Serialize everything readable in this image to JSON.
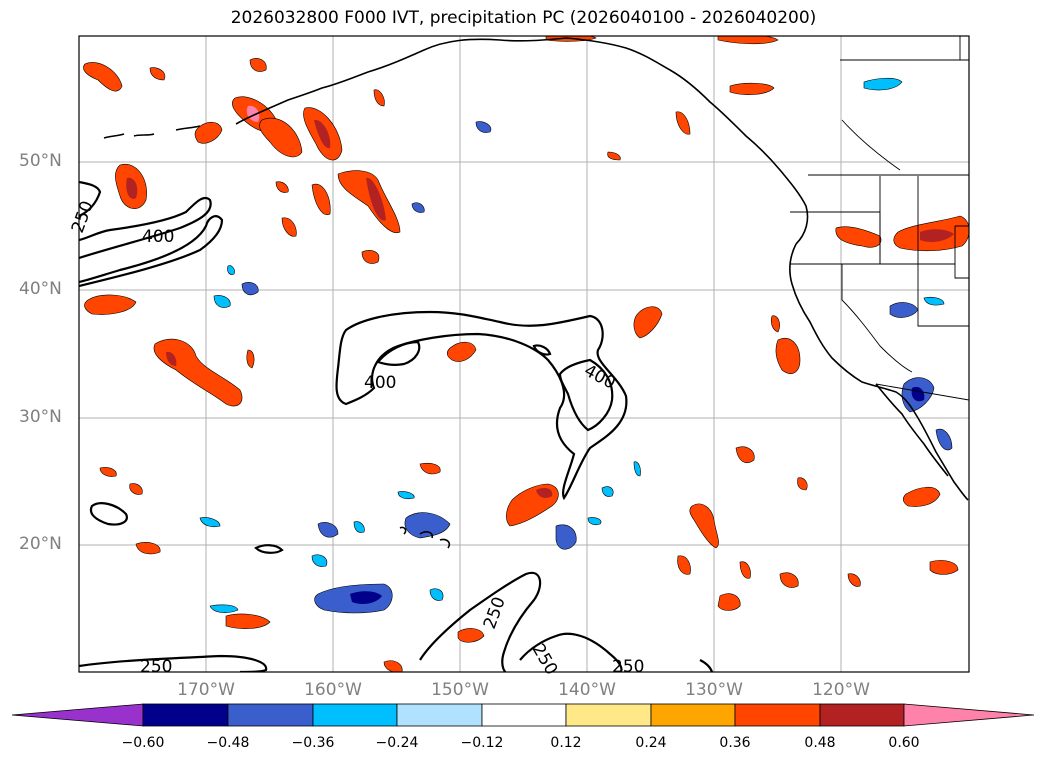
{
  "title": "2026032800 F000 IVT, precipitation PC (2026040100 - 2026040200)",
  "lat_labels": [
    "50°N",
    "40°N",
    "30°N",
    "20°N"
  ],
  "lon_labels": [
    "170°W",
    "160°W",
    "150°W",
    "140°W",
    "130°W",
    "120°W"
  ],
  "contour_labels": [
    "250",
    "400",
    "400",
    "400",
    "250",
    "250",
    "250",
    "250"
  ],
  "colorbar": {
    "ticks": [
      "−0.60",
      "−0.48",
      "−0.36",
      "−0.24",
      "−0.12",
      "0.12",
      "0.24",
      "0.36",
      "0.48",
      "0.60"
    ],
    "colors": [
      "#9932cc",
      "#00008b",
      "#3a5fcd",
      "#00bfff",
      "#b0e2ff",
      "#ffffff",
      "#ffe888",
      "#ffa500",
      "#ff4500",
      "#b22222",
      "#ff82ab"
    ]
  },
  "colors": {
    "grid": "#b0b0b0",
    "coast": "#000000",
    "label": "#808080"
  }
}
